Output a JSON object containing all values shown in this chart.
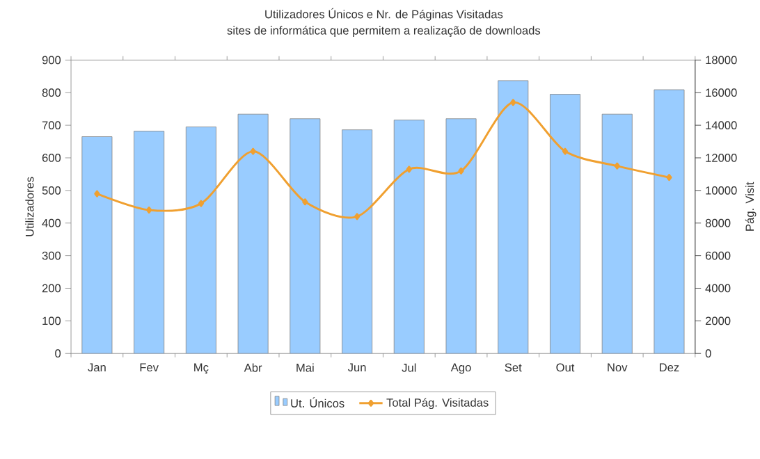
{
  "chart_data": {
    "type": "bar",
    "title": "Utilizadores Únicos e Nr. de Páginas Visitadas",
    "subtitle": "sites de informática que permitem a realização de downloads",
    "ylabel": "Utilizadores",
    "y2label": "Pág. Visit",
    "categories": [
      "Jan",
      "Fev",
      "Mç",
      "Abr",
      "Mai",
      "Jun",
      "Jul",
      "Ago",
      "Set",
      "Out",
      "Nov",
      "Dez"
    ],
    "series": [
      {
        "name": "Ut. Únicos",
        "color": "#99ccff",
        "values": [
          665,
          682,
          695,
          734,
          720,
          686,
          716,
          720,
          837,
          795,
          734,
          809
        ]
      },
      {
        "name": "Total Pág. Visitadas",
        "type": "line",
        "axis": "y2",
        "color": "#f0a030",
        "marker": "diamond",
        "values": [
          9800,
          8800,
          9200,
          12400,
          9300,
          8400,
          11300,
          11200,
          15400,
          12400,
          11500,
          10800
        ]
      }
    ],
    "ylim": [
      0,
      900
    ],
    "yticks": [
      0,
      100,
      200,
      300,
      400,
      500,
      600,
      700,
      800,
      900
    ],
    "y2lim": [
      0,
      18000
    ],
    "y2ticks": [
      0,
      2000,
      4000,
      6000,
      8000,
      10000,
      12000,
      14000,
      16000,
      18000
    ],
    "legend": "bottom"
  }
}
